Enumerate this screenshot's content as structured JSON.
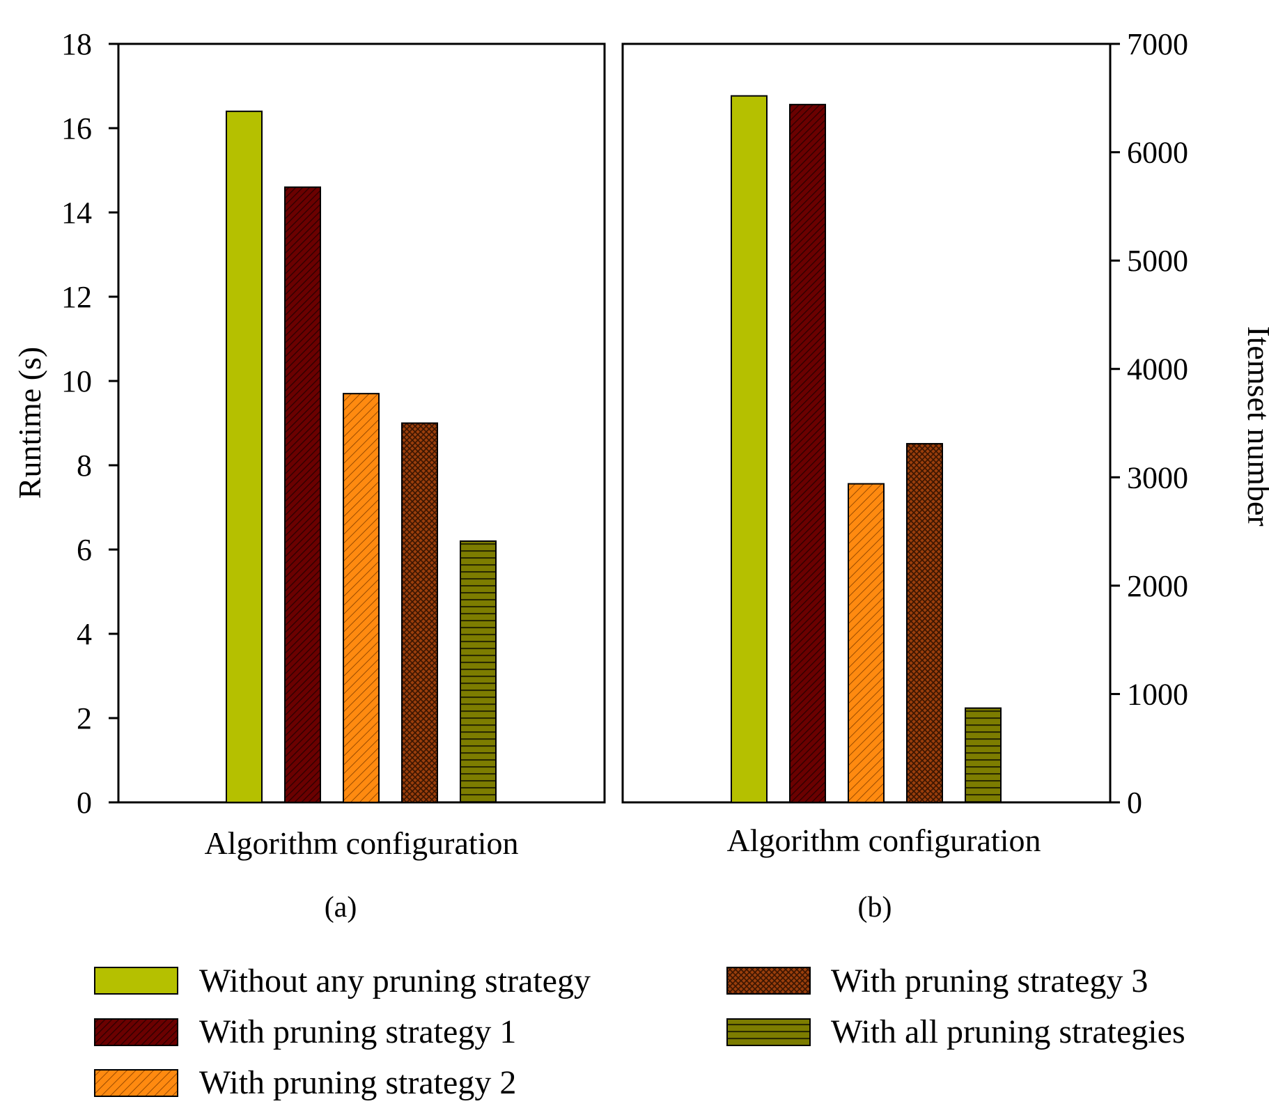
{
  "chart_data": [
    {
      "id": "a",
      "type": "bar",
      "caption": "(a)",
      "xlabel": "Algorithm configuration",
      "ylabel": "Runtime (s)",
      "ylim": [
        0,
        18
      ],
      "yticks": [
        0,
        2,
        4,
        6,
        8,
        10,
        12,
        14,
        16,
        18
      ],
      "y_axis_side": "left",
      "categories": [
        "Without any pruning strategy",
        "With pruning strategy 1",
        "With pruning strategy 2",
        "With pruning strategy 3",
        "With all pruning strategies"
      ],
      "values": [
        16.4,
        14.6,
        9.7,
        9.0,
        6.2
      ]
    },
    {
      "id": "b",
      "type": "bar",
      "caption": "(b)",
      "xlabel": "Algorithm configuration",
      "ylabel": "Itemset number",
      "ylim": [
        0,
        7000
      ],
      "yticks": [
        0,
        1000,
        2000,
        3000,
        4000,
        5000,
        6000,
        7000
      ],
      "y_axis_side": "right",
      "categories": [
        "Without any pruning strategy",
        "With pruning strategy 1",
        "With pruning strategy 2",
        "With pruning strategy 3",
        "With all pruning strategies"
      ],
      "values": [
        6520,
        6440,
        2940,
        3310,
        870
      ]
    }
  ],
  "legend": {
    "placement": "bottom",
    "items": [
      {
        "label": "Without any pruning strategy",
        "color": "#b5c000",
        "pattern": "solid"
      },
      {
        "label": "With pruning strategy 1",
        "color": "#6b0000",
        "pattern": "diagonal"
      },
      {
        "label": "With pruning strategy 2",
        "color": "#ff8a10",
        "pattern": "diagonal-light"
      },
      {
        "label": "With pruning strategy 3",
        "color": "#9a3e0c",
        "pattern": "crosshatch"
      },
      {
        "label": "With all pruning strategies",
        "color": "#7d7d00",
        "pattern": "horizontal"
      }
    ]
  }
}
